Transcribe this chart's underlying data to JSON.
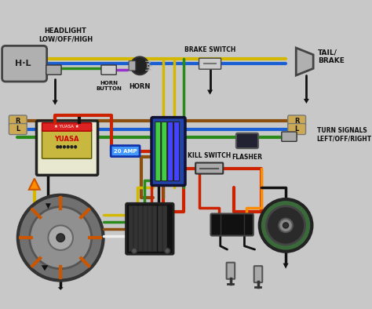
{
  "background_color": "#2a2a2a",
  "wire_colors": {
    "yellow": "#d4b800",
    "blue": "#1a5fd4",
    "green": "#2a8a1a",
    "red": "#cc2200",
    "brown": "#8B5010",
    "purple": "#9932CC",
    "orange": "#FF8C00",
    "black": "#111111",
    "white": "#eeeeee",
    "teal": "#008888",
    "gray": "#888888",
    "dark_gray": "#444444"
  },
  "labels": {
    "headlight": "HEADLIGHT\nLOW/OFF/HIGH",
    "tail_brake": "TAIL/\nBRAKE",
    "horn_button": "HORN\nBUTTON",
    "horn": "HORN",
    "brake_switch": "BRAKE SWITCH",
    "flasher": "FLASHER",
    "turn_signals": "TURN SIGNALS\nLEFT/OFF/RIGHT",
    "kill_switch": "KILL SWITCH",
    "amp_fuse": "20 AMP"
  },
  "figsize": [
    4.74,
    3.94
  ],
  "dpi": 100
}
